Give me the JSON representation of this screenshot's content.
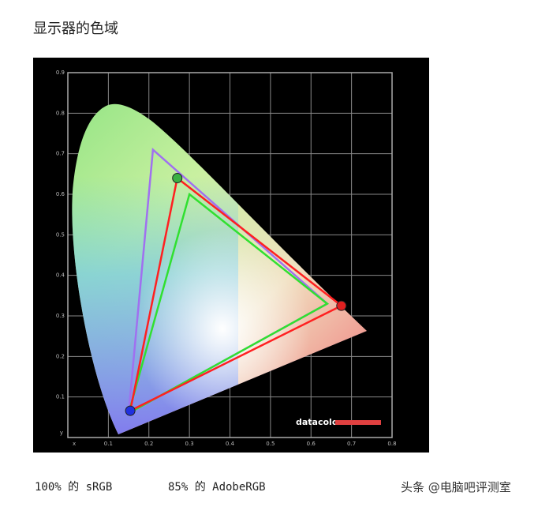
{
  "heading": "显示器的色域",
  "captions": [
    "100% 的 sRGB",
    "85% 的 AdobeRGB"
  ],
  "watermark": "头条 @电脑吧评测室",
  "chart_data": {
    "type": "line",
    "xlabel": "x",
    "ylabel": "y",
    "logo": "datacolor",
    "xlim": [
      0,
      0.8
    ],
    "ylim": [
      0,
      0.9
    ],
    "xticks": [
      0.1,
      0.2,
      0.3,
      0.4,
      0.5,
      0.6,
      0.7,
      0.8
    ],
    "yticks": [
      0.1,
      0.2,
      0.3,
      0.4,
      0.5,
      0.6,
      0.7,
      0.8,
      0.9
    ],
    "grid": true,
    "series": [
      {
        "color": "#a070f0",
        "x": [
          0.21,
          0.64,
          0.15
        ],
        "values": [
          0.71,
          0.33,
          0.06
        ]
      },
      {
        "color": "#30e030",
        "x": [
          0.3,
          0.64,
          0.15
        ],
        "values": [
          0.6,
          0.33,
          0.06
        ]
      },
      {
        "color": "#ff2020",
        "x": [
          0.27,
          0.675,
          0.154
        ],
        "values": [
          0.64,
          0.325,
          0.066
        ]
      }
    ],
    "markers": {
      "series": 2,
      "colors": [
        "#3cb043",
        "#e02020",
        "#2030e0"
      ]
    }
  }
}
